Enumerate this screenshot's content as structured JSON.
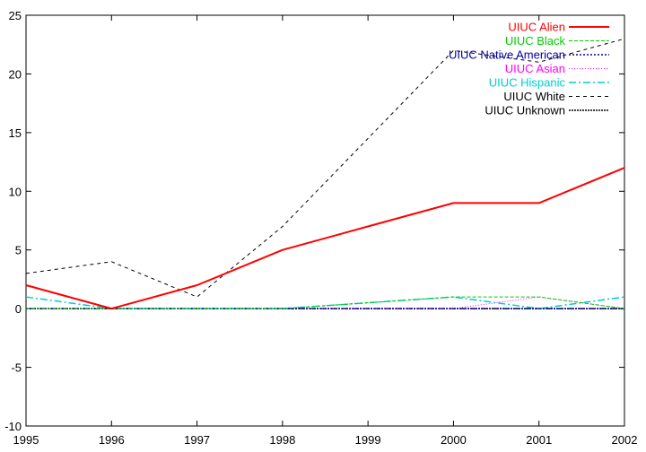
{
  "chart_data": {
    "type": "line",
    "title": "",
    "xlabel": "",
    "ylabel": "",
    "x": [
      1995,
      1996,
      1997,
      1998,
      1999,
      2000,
      2001,
      2002
    ],
    "xlim": [
      1995,
      2002
    ],
    "ylim": [
      -10,
      25
    ],
    "xticks": [
      "1995",
      "1996",
      "1997",
      "1998",
      "1999",
      "2000",
      "2001",
      "2002"
    ],
    "yticks": [
      "-10",
      "-5",
      "0",
      "5",
      "10",
      "15",
      "20",
      "25"
    ],
    "grid": false,
    "legend_position": "top-right",
    "series": [
      {
        "name": "UIUC Alien",
        "color": "#ff0000",
        "dash": "solid",
        "width": 2,
        "values": [
          2,
          0,
          2,
          5,
          7,
          9,
          9,
          12
        ]
      },
      {
        "name": "UIUC Black",
        "color": "#00cc00",
        "dash": "dashed",
        "width": 1,
        "values": [
          0,
          0,
          0,
          0,
          0.5,
          1,
          1,
          0
        ]
      },
      {
        "name": "UIUC Native American",
        "color": "#0000a0",
        "dash": "dotted",
        "width": 1.5,
        "values": [
          0,
          0,
          0,
          0,
          0,
          0,
          0,
          0
        ]
      },
      {
        "name": "UIUC Asian",
        "color": "#ff00ff",
        "dash": "dotted-fine",
        "width": 1,
        "values": [
          0,
          0,
          0,
          0,
          0,
          0,
          1,
          0
        ]
      },
      {
        "name": "UIUC Hispanic",
        "color": "#00cccc",
        "dash": "dashdot",
        "width": 1.5,
        "values": [
          1,
          0,
          0,
          0,
          0.5,
          1,
          0,
          1
        ]
      },
      {
        "name": "UIUC White",
        "color": "#000000",
        "dash": "longdash",
        "width": 1,
        "values": [
          3,
          4,
          1,
          7,
          14.5,
          22,
          21,
          23
        ]
      },
      {
        "name": "UIUC Unknown",
        "color": "#000000",
        "dash": "dense-dotted",
        "width": 1.5,
        "values": [
          0,
          0,
          0,
          0,
          0,
          0,
          0,
          0
        ]
      }
    ]
  }
}
